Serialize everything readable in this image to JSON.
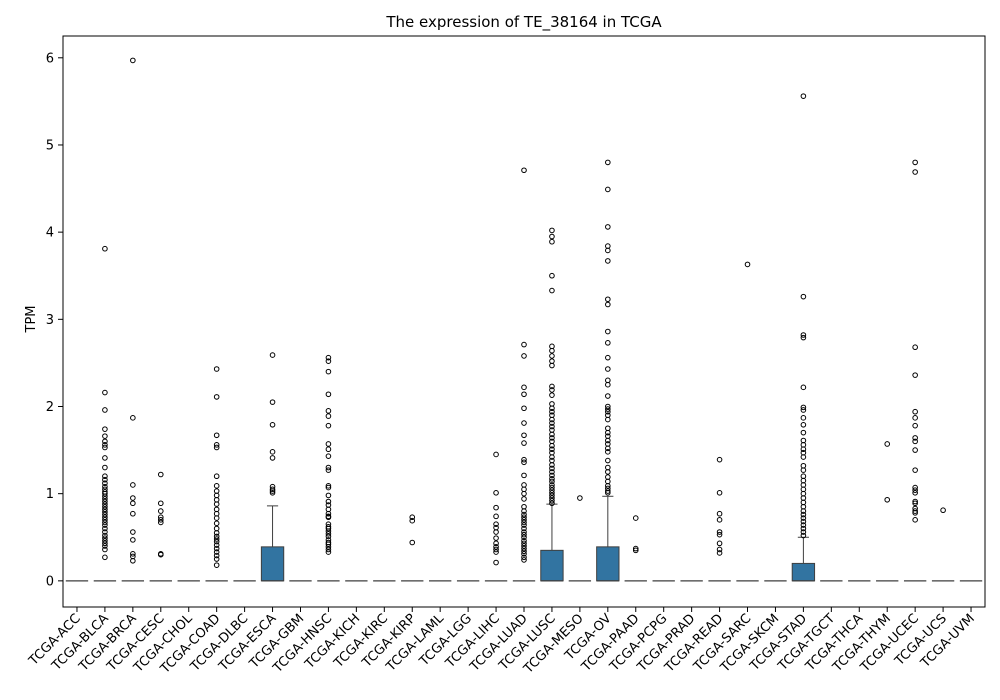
{
  "chart_data": {
    "type": "box",
    "title": "The expression of TE_38164 in TCGA",
    "xlabel": "",
    "ylabel": "TPM",
    "ylim": [
      -0.3,
      6.25
    ],
    "yticks": [
      0,
      1,
      2,
      3,
      4,
      5,
      6
    ],
    "grid": false,
    "box_color": "#3274a1",
    "categories": [
      "TCGA-ACC",
      "TCGA-BLCA",
      "TCGA-BRCA",
      "TCGA-CESC",
      "TCGA-CHOL",
      "TCGA-COAD",
      "TCGA-DLBC",
      "TCGA-ESCA",
      "TCGA-GBM",
      "TCGA-HNSC",
      "TCGA-KICH",
      "TCGA-KIRC",
      "TCGA-KIRP",
      "TCGA-LAML",
      "TCGA-LGG",
      "TCGA-LIHC",
      "TCGA-LUAD",
      "TCGA-LUSC",
      "TCGA-MESO",
      "TCGA-OV",
      "TCGA-PAAD",
      "TCGA-PCPG",
      "TCGA-PRAD",
      "TCGA-READ",
      "TCGA-SARC",
      "TCGA-SKCM",
      "TCGA-STAD",
      "TCGA-TGCT",
      "TCGA-THCA",
      "TCGA-THYM",
      "TCGA-UCEC",
      "TCGA-UCS",
      "TCGA-UVM"
    ],
    "boxes": [
      {
        "q1": 0,
        "median": 0,
        "q3": 0,
        "whisker_low": 0,
        "whisker_high": 0,
        "outliers": []
      },
      {
        "q1": 0,
        "median": 0,
        "q3": 0,
        "whisker_low": 0,
        "whisker_high": 0,
        "outliers": [
          3.81,
          2.16,
          1.96,
          1.74,
          1.66,
          1.6,
          1.56,
          1.53,
          1.41,
          1.3,
          1.2,
          1.16,
          1.12,
          1.08,
          1.05,
          1.02,
          1.0,
          0.97,
          0.94,
          0.91,
          0.88,
          0.85,
          0.82,
          0.79,
          0.76,
          0.73,
          0.7,
          0.67,
          0.64,
          0.6,
          0.56,
          0.52,
          0.49,
          0.46,
          0.43,
          0.4,
          0.36,
          0.27
        ]
      },
      {
        "q1": 0,
        "median": 0,
        "q3": 0,
        "whisker_low": 0,
        "whisker_high": 0,
        "outliers": [
          5.97,
          1.87,
          1.1,
          0.95,
          0.89,
          0.77,
          0.56,
          0.47,
          0.31,
          0.28,
          0.23
        ]
      },
      {
        "q1": 0,
        "median": 0,
        "q3": 0,
        "whisker_low": 0,
        "whisker_high": 0,
        "outliers": [
          1.22,
          0.89,
          0.8,
          0.73,
          0.7,
          0.67,
          0.31,
          0.3
        ]
      },
      {
        "q1": 0,
        "median": 0,
        "q3": 0,
        "whisker_low": 0,
        "whisker_high": 0,
        "outliers": []
      },
      {
        "q1": 0,
        "median": 0,
        "q3": 0,
        "whisker_low": 0,
        "whisker_high": 0,
        "outliers": [
          2.43,
          2.11,
          1.67,
          1.56,
          1.53,
          1.2,
          1.09,
          1.03,
          0.98,
          0.93,
          0.88,
          0.82,
          0.77,
          0.72,
          0.66,
          0.6,
          0.55,
          0.51,
          0.48,
          0.45,
          0.41,
          0.37,
          0.33,
          0.29,
          0.25,
          0.18
        ]
      },
      {
        "q1": 0,
        "median": 0,
        "q3": 0,
        "whisker_low": 0,
        "whisker_high": 0,
        "outliers": []
      },
      {
        "q1": 0,
        "median": 0,
        "q3": 0.39,
        "whisker_low": 0,
        "whisker_high": 0.86,
        "outliers": [
          2.59,
          2.05,
          1.79,
          1.48,
          1.41,
          1.08,
          1.05,
          1.03,
          1.01
        ]
      },
      {
        "q1": 0,
        "median": 0,
        "q3": 0,
        "whisker_low": 0,
        "whisker_high": 0,
        "outliers": []
      },
      {
        "q1": 0,
        "median": 0,
        "q3": 0,
        "whisker_low": 0,
        "whisker_high": 0,
        "outliers": [
          2.56,
          2.52,
          2.4,
          2.14,
          1.95,
          1.89,
          1.78,
          1.57,
          1.51,
          1.43,
          1.3,
          1.27,
          1.09,
          1.07,
          0.98,
          0.91,
          0.87,
          0.82,
          0.77,
          0.74,
          0.73,
          0.65,
          0.62,
          0.6,
          0.57,
          0.54,
          0.51,
          0.47,
          0.44,
          0.42,
          0.39,
          0.36,
          0.33
        ]
      },
      {
        "q1": 0,
        "median": 0,
        "q3": 0,
        "whisker_low": 0,
        "whisker_high": 0,
        "outliers": []
      },
      {
        "q1": 0,
        "median": 0,
        "q3": 0,
        "whisker_low": 0,
        "whisker_high": 0,
        "outliers": []
      },
      {
        "q1": 0,
        "median": 0,
        "q3": 0,
        "whisker_low": 0,
        "whisker_high": 0,
        "outliers": [
          0.73,
          0.69,
          0.44
        ]
      },
      {
        "q1": 0,
        "median": 0,
        "q3": 0,
        "whisker_low": 0,
        "whisker_high": 0,
        "outliers": []
      },
      {
        "q1": 0,
        "median": 0,
        "q3": 0,
        "whisker_low": 0,
        "whisker_high": 0,
        "outliers": []
      },
      {
        "q1": 0,
        "median": 0,
        "q3": 0,
        "whisker_low": 0,
        "whisker_high": 0,
        "outliers": [
          1.45,
          1.01,
          0.84,
          0.74,
          0.65,
          0.61,
          0.56,
          0.49,
          0.43,
          0.39,
          0.36,
          0.33,
          0.21
        ]
      },
      {
        "q1": 0,
        "median": 0,
        "q3": 0,
        "whisker_low": 0,
        "whisker_high": 0,
        "outliers": [
          4.71,
          2.71,
          2.58,
          2.22,
          2.14,
          1.98,
          1.81,
          1.67,
          1.58,
          1.39,
          1.36,
          1.21,
          1.1,
          1.05,
          1.0,
          0.94,
          0.85,
          0.8,
          0.76,
          0.73,
          0.7,
          0.67,
          0.64,
          0.6,
          0.56,
          0.53,
          0.5,
          0.46,
          0.43,
          0.4,
          0.37,
          0.34,
          0.31,
          0.27,
          0.24
        ]
      },
      {
        "q1": 0,
        "median": 0,
        "q3": 0.35,
        "whisker_low": 0,
        "whisker_high": 0.88,
        "outliers": [
          4.02,
          3.95,
          3.89,
          3.5,
          3.33,
          2.69,
          2.64,
          2.58,
          2.52,
          2.47,
          2.23,
          2.19,
          2.13,
          2.03,
          1.98,
          1.94,
          1.9,
          1.85,
          1.81,
          1.77,
          1.73,
          1.68,
          1.64,
          1.6,
          1.55,
          1.51,
          1.47,
          1.42,
          1.38,
          1.33,
          1.29,
          1.25,
          1.21,
          1.17,
          1.14,
          1.1,
          1.07,
          1.04,
          1.01,
          0.98,
          0.95,
          0.92,
          0.89
        ]
      },
      {
        "q1": 0,
        "median": 0,
        "q3": 0,
        "whisker_low": 0,
        "whisker_high": 0,
        "outliers": [
          0.95
        ]
      },
      {
        "q1": 0,
        "median": 0,
        "q3": 0.39,
        "whisker_low": 0,
        "whisker_high": 0.97,
        "outliers": [
          4.8,
          4.49,
          4.06,
          3.84,
          3.79,
          3.67,
          3.23,
          3.17,
          2.86,
          2.73,
          2.56,
          2.43,
          2.3,
          2.25,
          2.12,
          2.0,
          1.97,
          1.94,
          1.9,
          1.85,
          1.75,
          1.7,
          1.66,
          1.61,
          1.57,
          1.52,
          1.48,
          1.38,
          1.3,
          1.25,
          1.19,
          1.14,
          1.09,
          1.06,
          1.03,
          1.01
        ]
      },
      {
        "q1": 0,
        "median": 0,
        "q3": 0,
        "whisker_low": 0,
        "whisker_high": 0,
        "outliers": [
          0.72,
          0.37,
          0.35
        ]
      },
      {
        "q1": 0,
        "median": 0,
        "q3": 0,
        "whisker_low": 0,
        "whisker_high": 0,
        "outliers": []
      },
      {
        "q1": 0,
        "median": 0,
        "q3": 0,
        "whisker_low": 0,
        "whisker_high": 0,
        "outliers": []
      },
      {
        "q1": 0,
        "median": 0,
        "q3": 0,
        "whisker_low": 0,
        "whisker_high": 0,
        "outliers": [
          1.39,
          1.01,
          0.77,
          0.7,
          0.56,
          0.53,
          0.43,
          0.36,
          0.32
        ]
      },
      {
        "q1": 0,
        "median": 0,
        "q3": 0,
        "whisker_low": 0,
        "whisker_high": 0,
        "outliers": [
          3.63
        ]
      },
      {
        "q1": 0,
        "median": 0,
        "q3": 0,
        "whisker_low": 0,
        "whisker_high": 0,
        "outliers": []
      },
      {
        "q1": 0,
        "median": 0,
        "q3": 0.2,
        "whisker_low": 0,
        "whisker_high": 0.5,
        "outliers": [
          5.56,
          3.26,
          2.82,
          2.79,
          2.22,
          1.99,
          1.96,
          1.87,
          1.79,
          1.7,
          1.61,
          1.56,
          1.51,
          1.47,
          1.42,
          1.32,
          1.27,
          1.2,
          1.15,
          1.1,
          1.05,
          1.0,
          0.95,
          0.9,
          0.85,
          0.8,
          0.76,
          0.72,
          0.68,
          0.64,
          0.6,
          0.56,
          0.52
        ]
      },
      {
        "q1": 0,
        "median": 0,
        "q3": 0,
        "whisker_low": 0,
        "whisker_high": 0,
        "outliers": []
      },
      {
        "q1": 0,
        "median": 0,
        "q3": 0,
        "whisker_low": 0,
        "whisker_high": 0,
        "outliers": []
      },
      {
        "q1": 0,
        "median": 0,
        "q3": 0,
        "whisker_low": 0,
        "whisker_high": 0,
        "outliers": [
          1.57,
          0.93
        ]
      },
      {
        "q1": 0,
        "median": 0,
        "q3": 0,
        "whisker_low": 0,
        "whisker_high": 0,
        "outliers": [
          4.8,
          4.69,
          2.68,
          2.36,
          1.94,
          1.87,
          1.78,
          1.64,
          1.6,
          1.5,
          1.27,
          1.07,
          1.04,
          1.01,
          0.91,
          0.89,
          0.83,
          0.8,
          0.78,
          0.7
        ]
      },
      {
        "q1": 0,
        "median": 0,
        "q3": 0,
        "whisker_low": 0,
        "whisker_high": 0,
        "outliers": [
          0.81
        ]
      },
      {
        "q1": 0,
        "median": 0,
        "q3": 0,
        "whisker_low": 0,
        "whisker_high": 0,
        "outliers": []
      }
    ]
  }
}
